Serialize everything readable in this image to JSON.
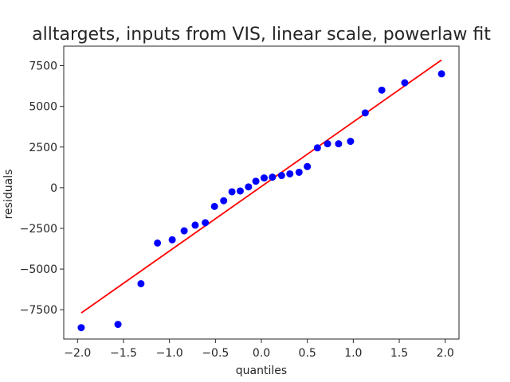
{
  "chart_data": {
    "type": "scatter",
    "title": "alltargets, inputs from VIS, linear scale, powerlaw fit",
    "xlabel": "quantiles",
    "ylabel": "residuals",
    "xlim": [
      -2.15,
      2.15
    ],
    "ylim": [
      -9300,
      8700
    ],
    "xticks": [
      -2.0,
      -1.5,
      -1.0,
      -0.5,
      0.0,
      0.5,
      1.0,
      1.5,
      2.0
    ],
    "xtick_labels": [
      "−2.0",
      "−1.5",
      "−1.0",
      "−0.5",
      "0.0",
      "0.5",
      "1.0",
      "1.5",
      "2.0"
    ],
    "yticks": [
      -7500,
      -5000,
      -2500,
      0,
      2500,
      5000,
      7500
    ],
    "ytick_labels": [
      "−7500",
      "−5000",
      "−2500",
      "0",
      "2500",
      "5000",
      "7500"
    ],
    "grid": false,
    "series": [
      {
        "kind": "points",
        "color": "#0000ff",
        "x": [
          -1.96,
          -1.56,
          -1.31,
          -1.13,
          -0.97,
          -0.84,
          -0.72,
          -0.61,
          -0.51,
          -0.41,
          -0.32,
          -0.23,
          -0.14,
          -0.06,
          0.03,
          0.12,
          0.22,
          0.31,
          0.41,
          0.5,
          0.61,
          0.72,
          0.84,
          0.97,
          1.13,
          1.31,
          1.56,
          1.96
        ],
        "y": [
          -8600,
          -8400,
          -5900,
          -3400,
          -3200,
          -2650,
          -2300,
          -2150,
          -1150,
          -800,
          -250,
          -200,
          50,
          400,
          600,
          650,
          750,
          850,
          950,
          1300,
          2450,
          2700,
          2700,
          2850,
          4600,
          6000,
          6450,
          7000
        ]
      },
      {
        "kind": "line",
        "color": "#ff0000",
        "x": [
          -1.96,
          1.96
        ],
        "y": [
          -7700,
          7850
        ]
      }
    ]
  }
}
